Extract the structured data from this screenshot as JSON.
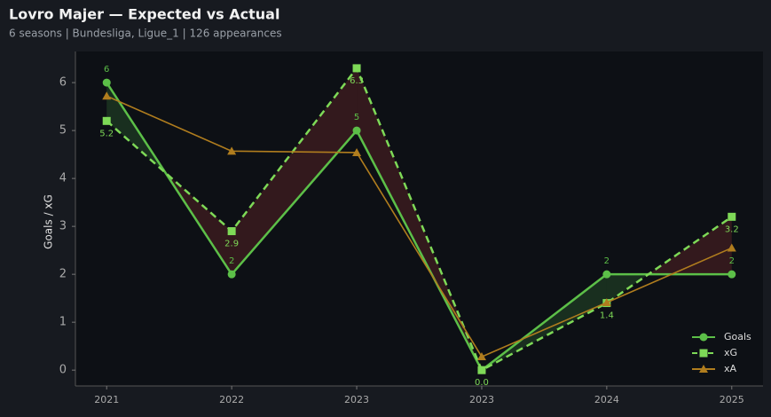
{
  "chart_data": {
    "type": "line",
    "title": "Lovro Majer — Expected vs Actual",
    "subtitle": "6 seasons | Bundesliga, Ligue_1 | 126 appearances",
    "y_label": "Goals / xG",
    "categories": [
      "2021",
      "2022",
      "2023",
      "2023",
      "2024",
      "2025"
    ],
    "series": [
      {
        "name": "Goals",
        "color": "#5cbf48",
        "marker": "circle",
        "dash": false,
        "values": [
          6,
          2,
          5,
          0,
          2,
          2
        ],
        "value_labels": [
          "6",
          "2",
          "5",
          null,
          "2",
          "2"
        ]
      },
      {
        "name": "xG",
        "color": "#7ed957",
        "marker": "square",
        "dash": true,
        "values": [
          5.2,
          2.9,
          6.3,
          0.0,
          1.4,
          3.2
        ],
        "value_labels": [
          "5.2",
          "2.9",
          "6.3",
          "0.0",
          "1.4",
          "3.2"
        ]
      },
      {
        "name": "xA",
        "color": "#b07d1e",
        "marker": "triangle",
        "dash": false,
        "values": [
          5.72,
          4.57,
          4.54,
          0.28,
          1.41,
          2.55
        ]
      }
    ],
    "ylim": [
      -0.33,
      6.65
    ],
    "yticks": [
      0,
      1,
      2,
      3,
      4,
      5,
      6
    ],
    "legend": "lower right"
  }
}
